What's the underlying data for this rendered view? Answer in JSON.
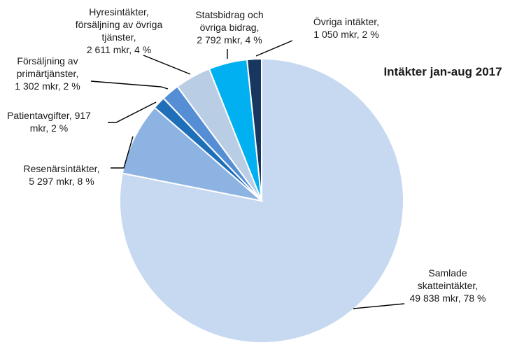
{
  "chart_data": {
    "type": "pie",
    "title": "Intäkter jan-aug 2017",
    "slices": [
      {
        "label_lines": [
          "Samlade",
          "skatteintäkter,",
          "49 838 mkr, 78 %"
        ],
        "value": 49838,
        "percent": 78,
        "color": "#c6d9f1"
      },
      {
        "label_lines": [
          "Resenärsintäkter,",
          "5 297 mkr, 8 %"
        ],
        "value": 5297,
        "percent": 8,
        "color": "#8db3e2"
      },
      {
        "label_lines": [
          "Patientavgifter, 917",
          "mkr, 2 %"
        ],
        "value": 917,
        "percent": 2,
        "color": "#1f6eb8"
      },
      {
        "label_lines": [
          "Försäljning av",
          "primärtjänster,",
          "1 302 mkr, 2 %"
        ],
        "value": 1302,
        "percent": 2,
        "color": "#558ed5"
      },
      {
        "label_lines": [
          "Hyresintäkter,",
          "försäljning av övriga",
          "tjänster,",
          "2 611 mkr, 4 %"
        ],
        "value": 2611,
        "percent": 4,
        "color": "#b9cde5"
      },
      {
        "label_lines": [
          "Statsbidrag och",
          "övriga bidrag,",
          "2 792 mkr, 4 %"
        ],
        "value": 2792,
        "percent": 4,
        "color": "#00b0f0"
      },
      {
        "label_lines": [
          "Övriga intäkter,",
          "1 050 mkr, 2 %"
        ],
        "value": 1050,
        "percent": 2,
        "color": "#17375e"
      }
    ]
  }
}
